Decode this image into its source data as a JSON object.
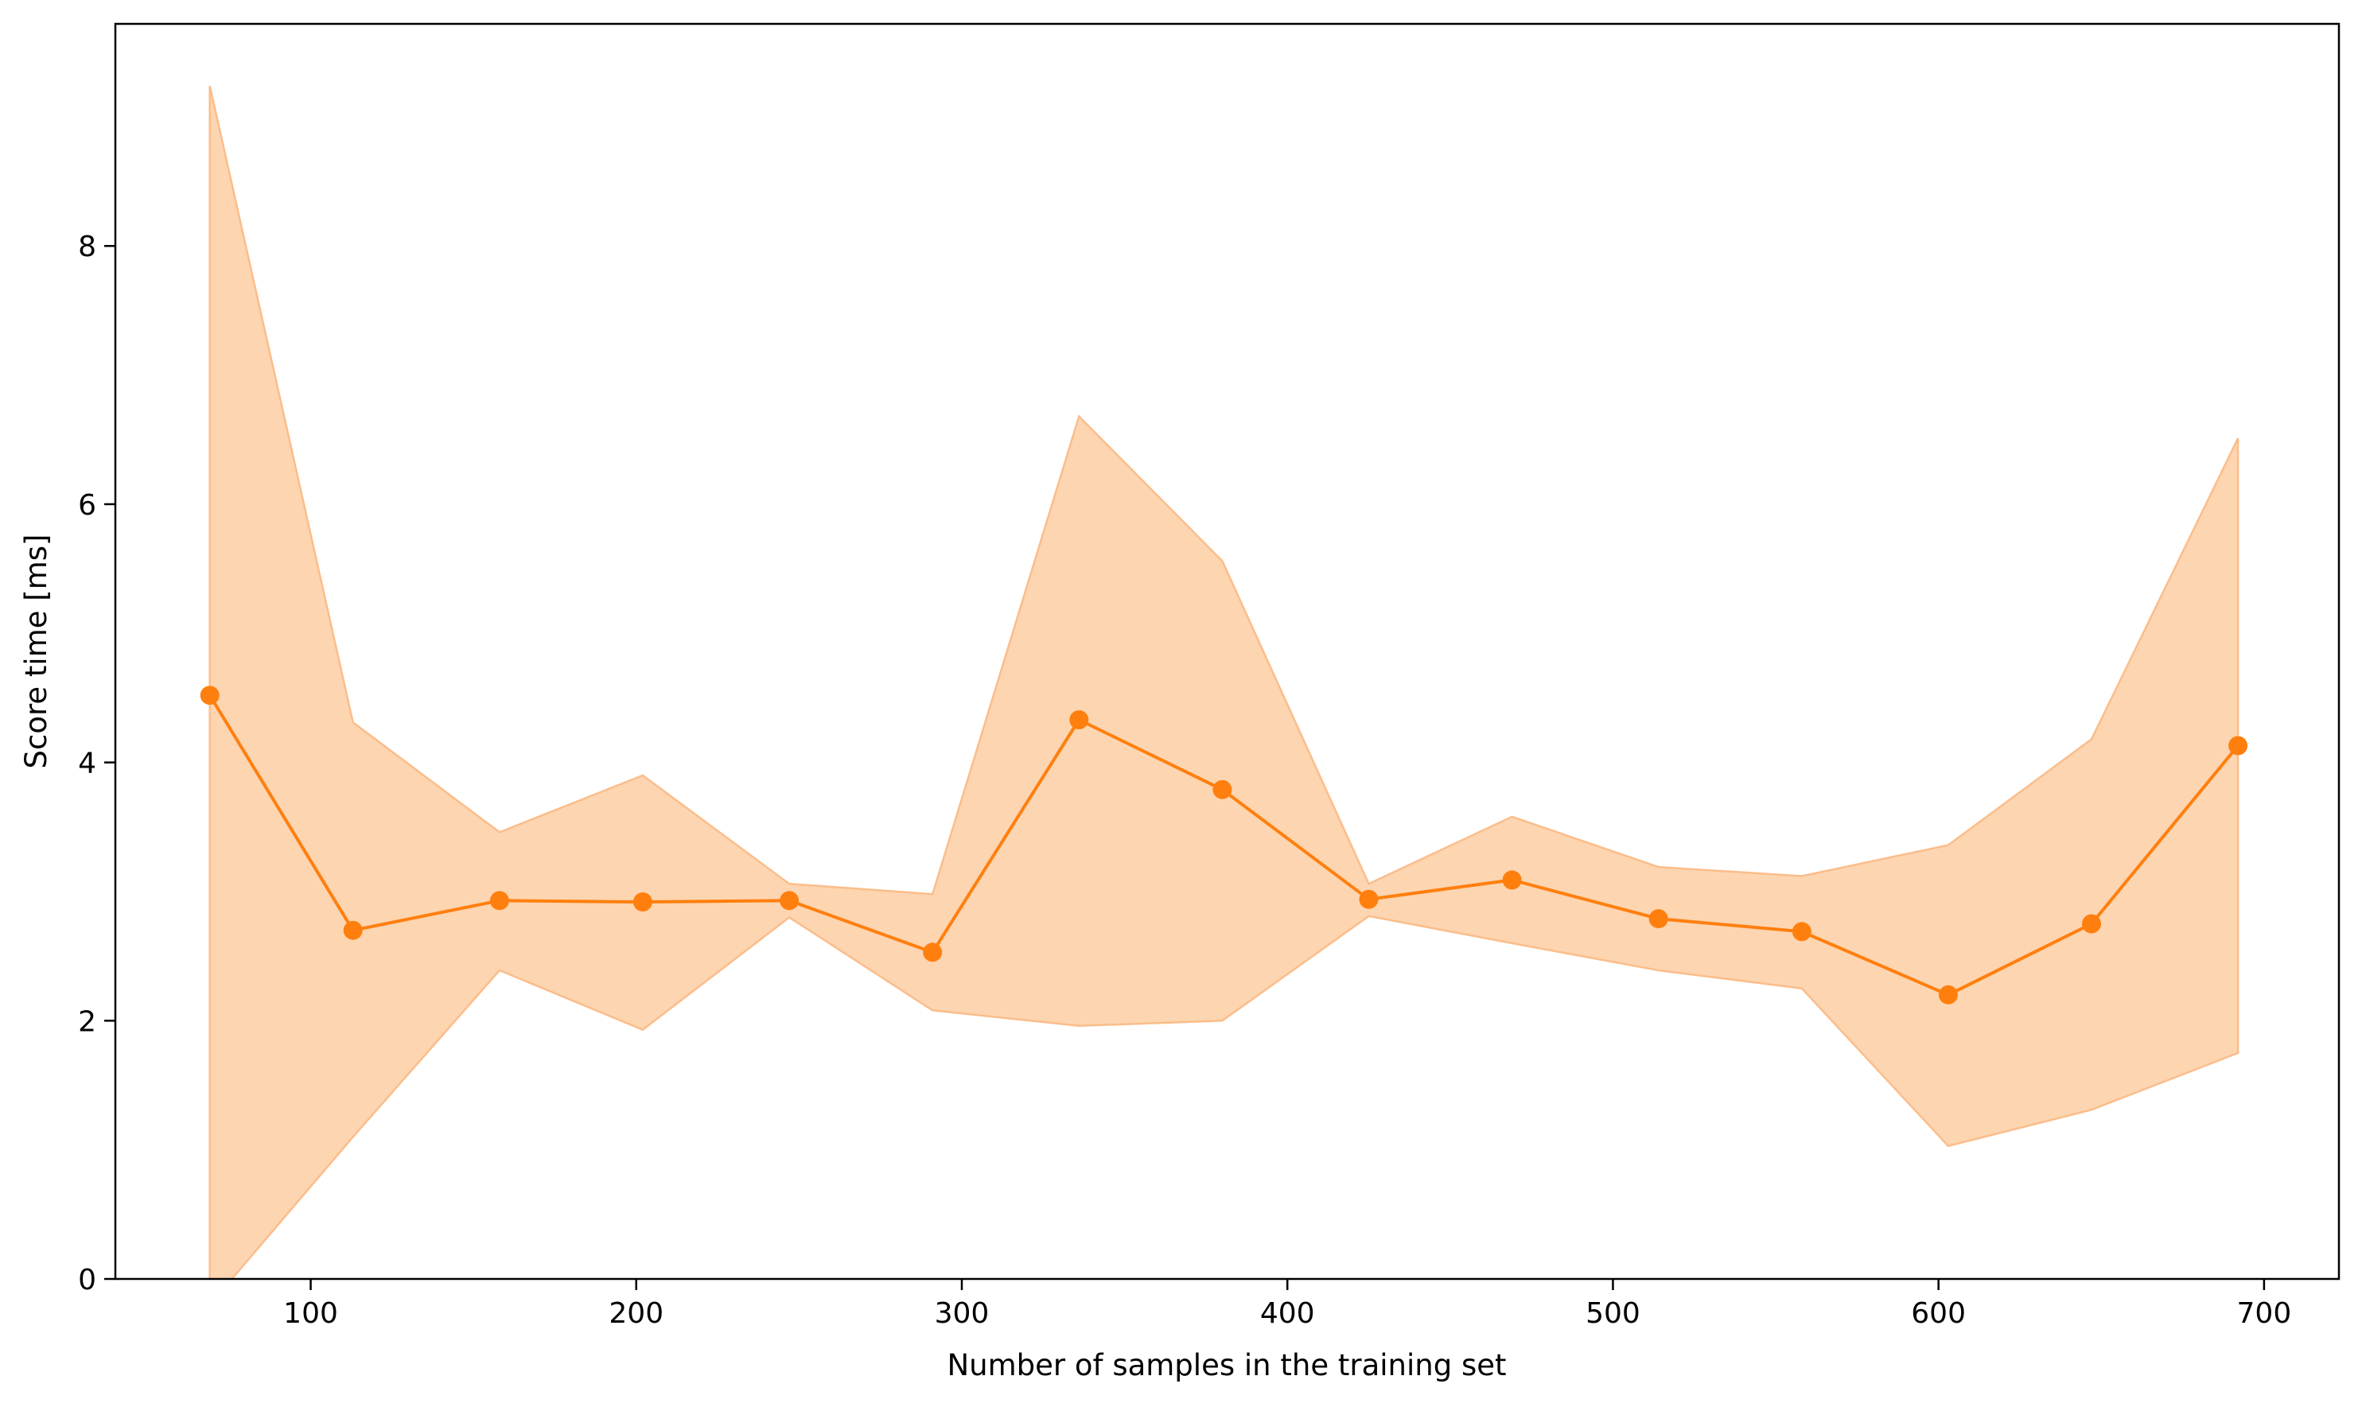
{
  "chart_data": {
    "type": "line",
    "title": "",
    "xlabel": "Number of samples in the training set",
    "ylabel": "Score time [ms]",
    "xlim": [
      40,
      723
    ],
    "ylim": [
      0,
      9.72
    ],
    "grid": false,
    "legend": "none",
    "x_ticks": [
      100,
      200,
      300,
      400,
      500,
      600,
      700
    ],
    "y_ticks": [
      0,
      2,
      4,
      6,
      8
    ],
    "series": [
      {
        "color": "#ff7f0e",
        "band_color": "#fdd5b1",
        "band_edge_color": "#fbbd8a",
        "x": [
          69,
          113,
          158,
          202,
          247,
          291,
          336,
          380,
          425,
          469,
          514,
          558,
          603,
          647,
          692
        ],
        "values": [
          4.52,
          2.7,
          2.93,
          2.92,
          2.93,
          2.53,
          4.33,
          3.79,
          2.94,
          3.09,
          2.79,
          2.69,
          2.2,
          2.75,
          4.13
        ],
        "lower": [
          -0.2,
          1.1,
          2.39,
          1.93,
          2.8,
          2.08,
          1.96,
          2.0,
          2.81,
          2.6,
          2.39,
          2.25,
          1.03,
          1.31,
          1.75
        ],
        "upper": [
          9.24,
          4.31,
          3.46,
          3.9,
          3.06,
          2.98,
          6.68,
          5.56,
          3.06,
          3.58,
          3.19,
          3.12,
          3.36,
          4.18,
          6.51
        ]
      }
    ]
  }
}
